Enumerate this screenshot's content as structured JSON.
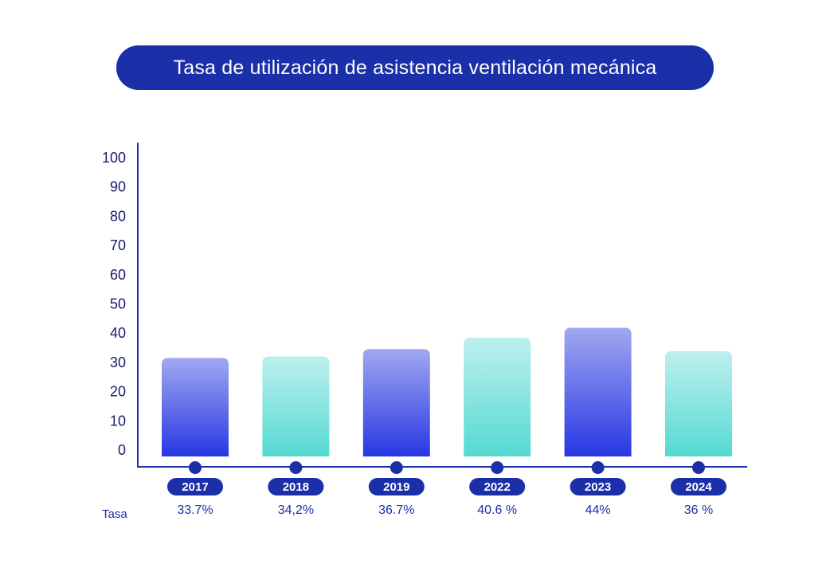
{
  "chart_data": {
    "type": "bar",
    "title": "Tasa de utilización de asistencia ventilación mecánica",
    "categories": [
      "2017",
      "2018",
      "2019",
      "2022",
      "2023",
      "2024"
    ],
    "values": [
      33.7,
      34.2,
      36.7,
      40.6,
      44,
      36
    ],
    "value_labels": [
      "33.7%",
      "34,2%",
      "36.7%",
      "40.6 %",
      "44%",
      "36 %"
    ],
    "row_label": "Tasa",
    "ylim": [
      0,
      100
    ],
    "yticks": [
      0,
      10,
      20,
      30,
      40,
      50,
      60,
      70,
      80,
      90,
      100
    ],
    "bar_styles": [
      "blue",
      "teal",
      "blue",
      "teal",
      "blue",
      "teal"
    ],
    "colors": {
      "axis": "#1b2fa8",
      "blue_top": "#a1a8f0",
      "blue_bottom": "#2737e3",
      "teal_top": "#bdf0ee",
      "teal_bottom": "#55d9d1",
      "badge": "#1b2fa8"
    }
  }
}
